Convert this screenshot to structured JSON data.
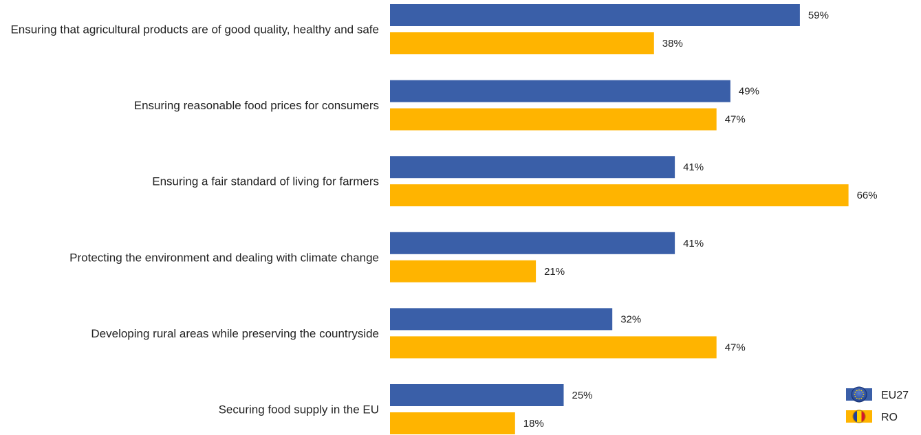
{
  "chart_data": {
    "type": "bar",
    "orientation": "horizontal",
    "categories": [
      "Ensuring that agricultural products are of good quality, healthy and safe",
      "Ensuring reasonable food prices for consumers",
      "Ensuring a fair standard of living for farmers",
      "Protecting the environment and dealing with climate change",
      "Developing rural areas while preserving the countryside",
      "Securing food supply in the EU"
    ],
    "series": [
      {
        "name": "EU27",
        "values": [
          59,
          49,
          41,
          41,
          32,
          25
        ],
        "labels": [
          "59%",
          "49%",
          "41%",
          "41%",
          "32%",
          "25%"
        ],
        "color": "#3a5fa8",
        "icon": "eu-flag-icon"
      },
      {
        "name": "RO",
        "values": [
          38,
          47,
          66,
          21,
          47,
          18
        ],
        "labels": [
          "38%",
          "47%",
          "66%",
          "21%",
          "47%",
          "18%"
        ],
        "color": "#ffb400",
        "icon": "romania-flag-icon"
      }
    ],
    "unit": "%",
    "xlim": [
      0,
      100
    ],
    "grid": false,
    "legend_position": "bottom-right"
  }
}
